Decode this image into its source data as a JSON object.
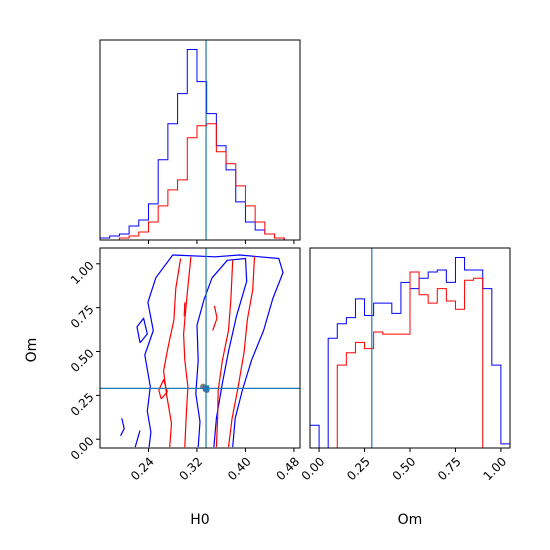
{
  "chart_data": {
    "type": "corner",
    "parameters": [
      "H0",
      "Om"
    ],
    "truth": {
      "H0": 0.335,
      "Om": 0.29
    },
    "colors": {
      "blue_run": "#0000ff",
      "red_run": "#ff0000",
      "truth": "#1f77b4"
    },
    "panels": [
      {
        "id": "hist-h0",
        "type": "histogram",
        "xlim": [
          0.16,
          0.49
        ],
        "xticks": [
          0.24,
          0.32,
          0.4,
          0.48
        ],
        "show_xtick_labels": false,
        "bin_edges": [
          0.16,
          0.176,
          0.192,
          0.208,
          0.224,
          0.24,
          0.256,
          0.272,
          0.288,
          0.304,
          0.32,
          0.336,
          0.352,
          0.368,
          0.384,
          0.4,
          0.416,
          0.432,
          0.448,
          0.464,
          0.48
        ],
        "series": [
          {
            "color": "#0000ff",
            "counts": [
              1,
              2,
              3,
              7,
              10,
              18,
              40,
              58,
              73,
              95,
              79,
              63,
              47,
              35,
              19,
              9,
              5,
              3,
              1,
              0
            ]
          },
          {
            "color": "#ff0000",
            "counts": [
              0,
              0,
              1,
              2,
              4,
              9,
              17,
              25,
              30,
              51,
              57,
              58,
              44,
              38,
              27,
              17,
              9,
              3,
              1,
              0
            ]
          }
        ]
      },
      {
        "id": "hist-om",
        "type": "histogram",
        "xlim": [
          -0.05,
          1.05
        ],
        "xticks": [
          0.0,
          0.25,
          0.5,
          0.75,
          1.0
        ],
        "xtick_labels": [
          "0.00",
          "0.25",
          "0.50",
          "0.75",
          "1.00"
        ],
        "xlabel": "Om",
        "bin_edges": [
          -0.05,
          0.0,
          0.05,
          0.1,
          0.15,
          0.2,
          0.25,
          0.3,
          0.35,
          0.4,
          0.45,
          0.5,
          0.55,
          0.6,
          0.65,
          0.7,
          0.75,
          0.8,
          0.85,
          0.9,
          0.95,
          1.0,
          1.05
        ],
        "series": [
          {
            "color": "#0000ff",
            "counts": [
              11,
              0,
              53,
              60,
              63,
              72,
              64,
              70,
              70,
              65,
              80,
              77,
              82,
              85,
              86,
              80,
              92,
              86,
              86,
              77,
              40,
              2
            ]
          },
          {
            "color": "#ff0000",
            "counts": [
              0,
              0,
              0,
              40,
              46,
              51,
              48,
              56,
              55,
              55,
              55,
              85,
              74,
              70,
              77,
              71,
              67,
              81,
              82,
              0,
              0,
              0
            ]
          }
        ]
      },
      {
        "id": "contour-h0-om",
        "type": "contour",
        "xlim": [
          0.16,
          0.49
        ],
        "ylim": [
          -0.05,
          1.09
        ],
        "xticks": [
          0.24,
          0.32,
          0.4,
          0.48
        ],
        "xtick_labels": [
          "0.24",
          "0.32",
          "0.40",
          "0.48"
        ],
        "yticks": [
          0.0,
          0.25,
          0.5,
          0.75,
          1.0
        ],
        "ytick_labels": [
          "0.00",
          "0.25",
          "0.50",
          "0.75",
          "1.00"
        ],
        "xlabel": "H0",
        "ylabel": "Om",
        "contours": [
          {
            "color": "#0000ff",
            "points": [
              [
                0.241,
                -0.045
              ],
              [
                0.244,
                0.04
              ],
              [
                0.238,
                0.16
              ],
              [
                0.243,
                0.3
              ],
              [
                0.234,
                0.48
              ],
              [
                0.248,
                0.62
              ],
              [
                0.239,
                0.78
              ],
              [
                0.252,
                0.92
              ],
              [
                0.28,
                1.05
              ],
              [
                0.35,
                1.04
              ],
              [
                0.39,
                1.05
              ],
              [
                0.455,
                1.03
              ],
              [
                0.462,
                0.95
              ],
              [
                0.445,
                0.8
              ],
              [
                0.43,
                0.62
              ],
              [
                0.41,
                0.45
              ],
              [
                0.395,
                0.28
              ],
              [
                0.383,
                0.12
              ],
              [
                0.379,
                -0.045
              ]
            ]
          },
          {
            "color": "#0000ff",
            "points": [
              [
                0.322,
                -0.045
              ],
              [
                0.325,
                0.1
              ],
              [
                0.318,
                0.26
              ],
              [
                0.322,
                0.45
              ],
              [
                0.32,
                0.65
              ],
              [
                0.332,
                0.8
              ],
              [
                0.345,
                0.92
              ],
              [
                0.37,
                1.02
              ],
              [
                0.4,
                1.03
              ],
              [
                0.402,
                0.9
              ],
              [
                0.385,
                0.7
              ],
              [
                0.372,
                0.5
              ],
              [
                0.362,
                0.32
              ],
              [
                0.352,
                0.12
              ],
              [
                0.348,
                -0.045
              ]
            ]
          },
          {
            "color": "#0000ff",
            "points": [
              [
                0.194,
                0.02
              ],
              [
                0.2,
                0.06
              ],
              [
                0.196,
                0.12
              ]
            ]
          },
          {
            "color": "#0000ff",
            "points": [
              [
                0.218,
                -0.045
              ],
              [
                0.226,
                0.05
              ]
            ]
          },
          {
            "color": "#0000ff",
            "points": [
              [
                0.226,
                0.55
              ],
              [
                0.238,
                0.6
              ],
              [
                0.232,
                0.69
              ],
              [
                0.221,
                0.64
              ],
              [
                0.226,
                0.55
              ]
            ]
          },
          {
            "color": "#ff0000",
            "points": [
              [
                0.275,
                -0.045
              ],
              [
                0.278,
                0.09
              ],
              [
                0.27,
                0.25
              ],
              [
                0.265,
                0.39
              ],
              [
                0.272,
                0.52
              ],
              [
                0.282,
                0.68
              ],
              [
                0.285,
                0.86
              ],
              [
                0.293,
                1.03
              ]
            ]
          },
          {
            "color": "#ff0000",
            "points": [
              [
                0.3,
                -0.045
              ],
              [
                0.302,
                0.12
              ],
              [
                0.305,
                0.3
              ],
              [
                0.3,
                0.45
              ],
              [
                0.298,
                0.6
              ],
              [
                0.303,
                0.8
              ],
              [
                0.31,
                1.04
              ]
            ]
          },
          {
            "color": "#ff0000",
            "points": [
              [
                0.352,
                -0.045
              ],
              [
                0.354,
                0.12
              ],
              [
                0.355,
                0.28
              ],
              [
                0.362,
                0.45
              ],
              [
                0.372,
                0.62
              ],
              [
                0.376,
                0.8
              ],
              [
                0.379,
                1.02
              ]
            ]
          },
          {
            "color": "#ff0000",
            "points": [
              [
                0.372,
                -0.045
              ],
              [
                0.378,
                0.12
              ],
              [
                0.388,
                0.3
              ],
              [
                0.398,
                0.5
              ],
              [
                0.403,
                0.68
              ],
              [
                0.412,
                0.85
              ],
              [
                0.415,
                1.04
              ]
            ]
          },
          {
            "color": "#ff0000",
            "points": [
              [
                0.261,
                0.23
              ],
              [
                0.271,
                0.27
              ],
              [
                0.265,
                0.34
              ],
              [
                0.257,
                0.28
              ],
              [
                0.261,
                0.23
              ]
            ]
          },
          {
            "color": "#ff0000",
            "points": [
              [
                0.299,
                0.7
              ],
              [
                0.3,
                0.78
              ]
            ]
          },
          {
            "color": "#ff0000",
            "points": [
              [
                0.346,
                0.62
              ],
              [
                0.353,
                0.69
              ],
              [
                0.349,
                0.76
              ]
            ]
          }
        ],
        "samples": [
          {
            "color": "#808080",
            "x": 0.336,
            "y": 0.28
          },
          {
            "color": "#808080",
            "x": 0.33,
            "y": 0.3
          }
        ]
      }
    ]
  },
  "labels": {
    "x_h0": "H0",
    "x_om": "Om",
    "y_om": "Om"
  }
}
